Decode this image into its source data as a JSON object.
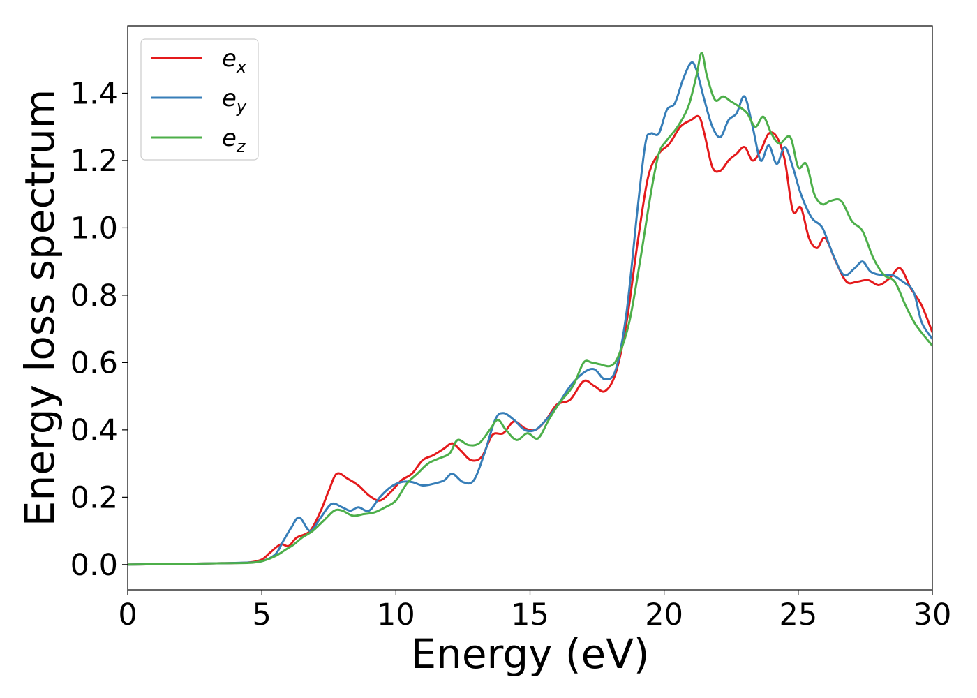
{
  "chart_data": {
    "type": "line",
    "xlabel": "Energy (eV)",
    "ylabel": "Energy loss spectrum",
    "xlim": [
      0,
      30
    ],
    "ylim": [
      -0.075,
      1.6
    ],
    "xticks": [
      "0",
      "5",
      "10",
      "15",
      "20",
      "25",
      "30"
    ],
    "yticks": [
      "0.0",
      "0.2",
      "0.4",
      "0.6",
      "0.8",
      "1.0",
      "1.2",
      "1.4"
    ],
    "grid": false,
    "legend_position": "top-left",
    "series": [
      {
        "name": "e_x",
        "label_base": "e",
        "label_sub": "x",
        "color": "#e41a1c",
        "x": [
          0,
          2,
          3.5,
          4.5,
          5,
          5.3,
          5.7,
          6,
          6.3,
          6.8,
          7.2,
          7.5,
          7.8,
          8.2,
          8.6,
          9,
          9.4,
          9.8,
          10.2,
          10.6,
          11,
          11.4,
          11.8,
          12.1,
          12.4,
          12.8,
          13.2,
          13.6,
          14,
          14.4,
          14.8,
          15.2,
          15.6,
          16,
          16.5,
          17,
          17.4,
          17.8,
          18.2,
          18.6,
          19,
          19.4,
          19.8,
          20.2,
          20.6,
          21,
          21.3,
          21.5,
          21.8,
          22.1,
          22.4,
          22.7,
          23,
          23.3,
          23.6,
          23.9,
          24.2,
          24.5,
          24.8,
          25.1,
          25.4,
          25.7,
          26,
          26.4,
          26.8,
          27.2,
          27.6,
          28,
          28.4,
          28.8,
          29.2,
          29.6,
          30
        ],
        "y": [
          0,
          0.002,
          0.004,
          0.006,
          0.015,
          0.035,
          0.06,
          0.055,
          0.08,
          0.1,
          0.16,
          0.22,
          0.27,
          0.255,
          0.235,
          0.205,
          0.19,
          0.215,
          0.25,
          0.27,
          0.31,
          0.325,
          0.345,
          0.36,
          0.34,
          0.31,
          0.32,
          0.385,
          0.39,
          0.425,
          0.405,
          0.4,
          0.43,
          0.475,
          0.49,
          0.545,
          0.53,
          0.515,
          0.57,
          0.72,
          0.95,
          1.15,
          1.22,
          1.25,
          1.3,
          1.32,
          1.33,
          1.28,
          1.18,
          1.17,
          1.2,
          1.22,
          1.24,
          1.2,
          1.23,
          1.28,
          1.27,
          1.2,
          1.05,
          1.06,
          0.97,
          0.94,
          0.97,
          0.9,
          0.84,
          0.84,
          0.845,
          0.83,
          0.85,
          0.88,
          0.82,
          0.77,
          0.69
        ]
      },
      {
        "name": "e_y",
        "label_base": "e",
        "label_sub": "y",
        "color": "#377eb8",
        "x": [
          0,
          2,
          3.5,
          4.5,
          5,
          5.5,
          5.8,
          6.1,
          6.4,
          6.8,
          7.2,
          7.6,
          8,
          8.3,
          8.6,
          9,
          9.4,
          9.8,
          10.2,
          10.6,
          11,
          11.4,
          11.8,
          12.1,
          12.5,
          12.9,
          13.3,
          13.7,
          14,
          14.4,
          14.8,
          15.2,
          15.6,
          16,
          16.5,
          17,
          17.4,
          17.8,
          18.2,
          18.6,
          19,
          19.3,
          19.5,
          19.8,
          20.1,
          20.4,
          20.7,
          21,
          21.2,
          21.5,
          21.8,
          22.1,
          22.4,
          22.7,
          23,
          23.3,
          23.6,
          23.9,
          24.2,
          24.5,
          24.8,
          25.1,
          25.5,
          25.9,
          26.3,
          26.7,
          27.1,
          27.4,
          27.7,
          28.1,
          28.5,
          28.9,
          29.3,
          29.6,
          30
        ],
        "y": [
          0,
          0.002,
          0.004,
          0.006,
          0.01,
          0.03,
          0.07,
          0.11,
          0.14,
          0.1,
          0.14,
          0.18,
          0.17,
          0.16,
          0.17,
          0.16,
          0.2,
          0.23,
          0.245,
          0.245,
          0.235,
          0.24,
          0.25,
          0.27,
          0.245,
          0.25,
          0.33,
          0.43,
          0.45,
          0.43,
          0.4,
          0.4,
          0.43,
          0.47,
          0.53,
          0.57,
          0.58,
          0.55,
          0.58,
          0.75,
          1.05,
          1.25,
          1.28,
          1.28,
          1.35,
          1.37,
          1.44,
          1.49,
          1.47,
          1.38,
          1.3,
          1.27,
          1.32,
          1.34,
          1.39,
          1.3,
          1.2,
          1.245,
          1.19,
          1.24,
          1.18,
          1.1,
          1.03,
          1.0,
          0.92,
          0.86,
          0.88,
          0.9,
          0.87,
          0.86,
          0.86,
          0.84,
          0.81,
          0.72,
          0.67
        ]
      },
      {
        "name": "e_z",
        "label_base": "e",
        "label_sub": "z",
        "color": "#4daf4a",
        "x": [
          0,
          2,
          3.5,
          4.5,
          5,
          5.5,
          5.9,
          6.2,
          6.5,
          6.9,
          7.3,
          7.7,
          8,
          8.4,
          8.8,
          9.2,
          9.6,
          10,
          10.4,
          10.8,
          11.2,
          11.6,
          12,
          12.3,
          12.7,
          13.1,
          13.5,
          13.8,
          14.1,
          14.5,
          14.9,
          15.3,
          15.7,
          16.1,
          16.6,
          17,
          17.3,
          17.6,
          18,
          18.3,
          18.7,
          19.1,
          19.5,
          19.8,
          20.1,
          20.5,
          20.9,
          21.2,
          21.4,
          21.6,
          21.9,
          22.2,
          22.5,
          22.8,
          23.1,
          23.4,
          23.7,
          24,
          24.3,
          24.7,
          25,
          25.3,
          25.6,
          25.9,
          26.2,
          26.6,
          27,
          27.4,
          27.8,
          28.2,
          28.6,
          29,
          29.4,
          30
        ],
        "y": [
          0,
          0.002,
          0.004,
          0.005,
          0.01,
          0.025,
          0.045,
          0.06,
          0.08,
          0.1,
          0.13,
          0.16,
          0.16,
          0.145,
          0.15,
          0.155,
          0.17,
          0.19,
          0.24,
          0.27,
          0.3,
          0.315,
          0.33,
          0.37,
          0.355,
          0.36,
          0.4,
          0.43,
          0.4,
          0.37,
          0.39,
          0.375,
          0.43,
          0.48,
          0.53,
          0.6,
          0.6,
          0.595,
          0.59,
          0.62,
          0.72,
          0.9,
          1.1,
          1.22,
          1.26,
          1.3,
          1.36,
          1.45,
          1.52,
          1.45,
          1.38,
          1.39,
          1.375,
          1.36,
          1.34,
          1.3,
          1.33,
          1.28,
          1.25,
          1.27,
          1.18,
          1.19,
          1.1,
          1.07,
          1.08,
          1.08,
          1.02,
          0.99,
          0.91,
          0.86,
          0.84,
          0.77,
          0.71,
          0.65
        ]
      }
    ]
  }
}
